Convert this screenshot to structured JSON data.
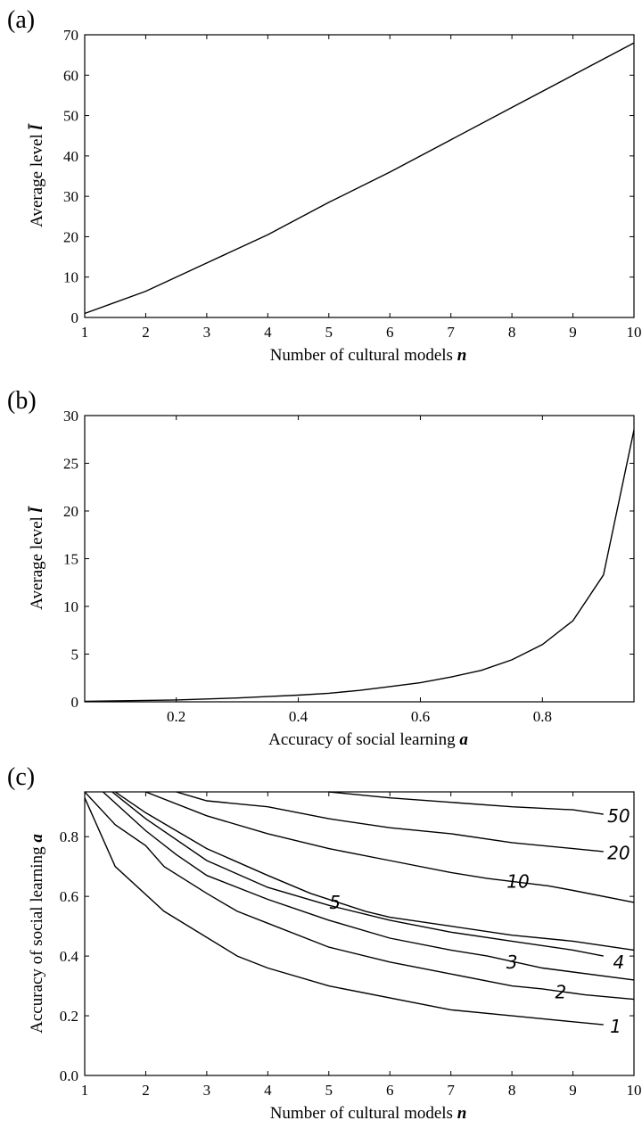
{
  "chart_data": [
    {
      "panel_label": "(a)",
      "type": "line",
      "xlabel": "Number of cultural models",
      "xlabel_var": "n",
      "ylabel": "Average level",
      "ylabel_var": "l̄",
      "xlim": [
        1,
        10
      ],
      "ylim": [
        0,
        70
      ],
      "xticks": [
        1,
        2,
        3,
        4,
        5,
        6,
        7,
        8,
        9,
        10
      ],
      "yticks": [
        0,
        10,
        20,
        30,
        40,
        50,
        60,
        70
      ],
      "series": [
        {
          "x": [
            1,
            2,
            3,
            4,
            5,
            6,
            7,
            8,
            9,
            10
          ],
          "y": [
            1,
            6.5,
            13.5,
            20.5,
            28.5,
            36,
            44,
            52,
            60,
            68
          ]
        }
      ]
    },
    {
      "panel_label": "(b)",
      "type": "line",
      "xlabel": "Accuracy of social learning",
      "xlabel_var": "a",
      "ylabel": "Average level",
      "ylabel_var": "l̄",
      "xlim": [
        0.05,
        0.95
      ],
      "ylim": [
        0,
        30
      ],
      "xticks": [
        0.2,
        0.4,
        0.6,
        0.8
      ],
      "xtick_labels": [
        "0.2",
        "0.4",
        "0.6",
        "0.8"
      ],
      "yticks": [
        0,
        5,
        10,
        15,
        20,
        25,
        30
      ],
      "series": [
        {
          "x": [
            0.05,
            0.1,
            0.15,
            0.2,
            0.25,
            0.3,
            0.35,
            0.4,
            0.45,
            0.5,
            0.55,
            0.6,
            0.65,
            0.7,
            0.75,
            0.8,
            0.85,
            0.9,
            0.95
          ],
          "y": [
            0.05,
            0.1,
            0.15,
            0.2,
            0.3,
            0.4,
            0.55,
            0.7,
            0.9,
            1.2,
            1.6,
            2.0,
            2.6,
            3.3,
            4.4,
            6.0,
            8.5,
            13.3,
            28.5
          ]
        }
      ]
    },
    {
      "panel_label": "(c)",
      "type": "line",
      "subtype": "contour",
      "xlabel": "Number of cultural models",
      "xlabel_var": "n",
      "ylabel": "Accuracy of social learning",
      "ylabel_var": "a",
      "xlim": [
        1,
        10
      ],
      "ylim": [
        0,
        0.95
      ],
      "xticks": [
        1,
        2,
        3,
        4,
        5,
        6,
        7,
        8,
        9,
        10
      ],
      "yticks": [
        0,
        0.2,
        0.4,
        0.6,
        0.8
      ],
      "ytick_labels": [
        "0.0",
        "0.2",
        "0.4",
        "0.6",
        "0.8"
      ],
      "contours": [
        {
          "level": "1",
          "x": [
            1,
            1.5,
            2.3,
            3.5,
            4,
            5,
            7,
            8,
            9.5
          ],
          "y": [
            0.93,
            0.7,
            0.55,
            0.4,
            0.36,
            0.3,
            0.22,
            0.2,
            0.17
          ],
          "label_at": [
            9.7,
            0.165
          ]
        },
        {
          "level": "2",
          "x": [
            1,
            1.5,
            2,
            2.3,
            3,
            3.5,
            4,
            5,
            6,
            7,
            8,
            8.5,
            9.2,
            10
          ],
          "y": [
            0.95,
            0.84,
            0.77,
            0.7,
            0.61,
            0.55,
            0.51,
            0.43,
            0.38,
            0.34,
            0.3,
            0.29,
            0.27,
            0.255
          ],
          "label_at": [
            8.8,
            0.28
          ]
        },
        {
          "level": "3",
          "x": [
            1.3,
            2,
            2.5,
            3,
            4,
            5,
            6,
            7,
            7.6,
            8.5,
            10
          ],
          "y": [
            0.95,
            0.82,
            0.74,
            0.67,
            0.59,
            0.52,
            0.46,
            0.42,
            0.4,
            0.36,
            0.32
          ],
          "label_at": [
            8.0,
            0.38
          ]
        },
        {
          "level": "4",
          "x": [
            1.45,
            2,
            3,
            4,
            5,
            6,
            7,
            8,
            9,
            9.5
          ],
          "y": [
            0.95,
            0.86,
            0.72,
            0.63,
            0.57,
            0.52,
            0.48,
            0.45,
            0.42,
            0.4
          ],
          "label_at": [
            9.75,
            0.38
          ]
        },
        {
          "level": "5",
          "x": [
            1.5,
            2,
            3,
            4,
            4.7,
            5.6,
            6,
            7,
            8,
            9,
            10
          ],
          "y": [
            0.95,
            0.88,
            0.76,
            0.67,
            0.61,
            0.55,
            0.53,
            0.5,
            0.47,
            0.45,
            0.42
          ],
          "label_at": [
            5.1,
            0.58
          ]
        },
        {
          "level": "10",
          "x": [
            2,
            3,
            4,
            5,
            6,
            7,
            7.6,
            8.6,
            9,
            10
          ],
          "y": [
            0.95,
            0.87,
            0.81,
            0.76,
            0.72,
            0.68,
            0.66,
            0.635,
            0.62,
            0.58
          ],
          "label_at": [
            8.1,
            0.65
          ]
        },
        {
          "level": "20",
          "x": [
            2.5,
            3,
            4,
            5,
            6,
            7,
            8,
            9,
            9.5
          ],
          "y": [
            0.95,
            0.92,
            0.9,
            0.86,
            0.83,
            0.81,
            0.78,
            0.76,
            0.75
          ],
          "label_at": [
            9.75,
            0.745
          ]
        },
        {
          "level": "50",
          "x": [
            5,
            6,
            7,
            8,
            9,
            9.5
          ],
          "y": [
            0.95,
            0.93,
            0.915,
            0.9,
            0.89,
            0.875
          ],
          "label_at": [
            9.75,
            0.87
          ]
        }
      ]
    }
  ]
}
